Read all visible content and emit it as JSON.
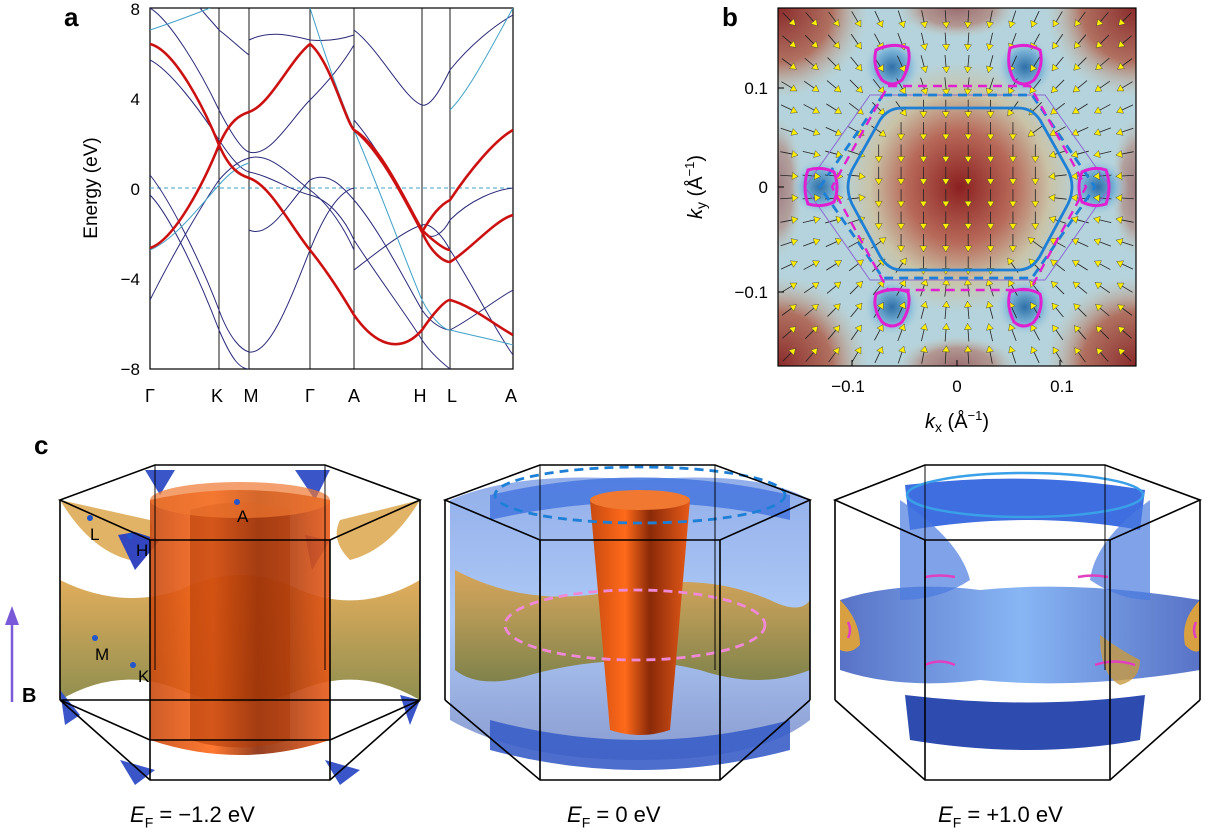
{
  "panels": {
    "a": "a",
    "b": "b",
    "c": "c"
  },
  "chart_data": [
    {
      "type": "line",
      "panel": "a",
      "ylabel": "Energy (eV)",
      "ylim": [
        -8,
        8
      ],
      "yticks": [
        "8",
        "4",
        "0",
        "−4",
        "−8"
      ],
      "kpath": [
        "Γ",
        "K",
        "M",
        "Γ",
        "A",
        "H",
        "L",
        "A"
      ],
      "fermi_level": 0,
      "highlight_band_color": "#cc1111",
      "band_color": "#2a2a7a",
      "secondary_band_color": "#3fa0c8"
    },
    {
      "type": "heatmap",
      "panel": "b",
      "xlabel_sym": "k",
      "xlabel_sub": "x",
      "xlabel_unit": "(Å",
      "xlabel_exp": "−1",
      "ylabel_sym": "k",
      "ylabel_sub": "y",
      "ylabel_unit": "(Å",
      "ylabel_exp": "−1",
      "xticks": [
        "−0.1",
        "0",
        "0.1"
      ],
      "yticks": [
        "0.1",
        "0",
        "−0.1"
      ],
      "xlim": [
        -0.17,
        0.17
      ],
      "ylim": [
        -0.17,
        0.17
      ],
      "contour_colors": {
        "pink": "#e020d0",
        "blue": "#1e7fd6"
      },
      "arrow_color": "#ffee00"
    }
  ],
  "panel_c": {
    "bz_labels": [
      "A",
      "L",
      "H",
      "M",
      "K"
    ],
    "field_label": "B",
    "captions": [
      {
        "sym": "E",
        "sub": "F",
        "text": " = −1.2 eV"
      },
      {
        "sym": "E",
        "sub": "F",
        "text": " = 0 eV"
      },
      {
        "sym": "E",
        "sub": "F",
        "text": " = +1.0 eV"
      }
    ]
  }
}
